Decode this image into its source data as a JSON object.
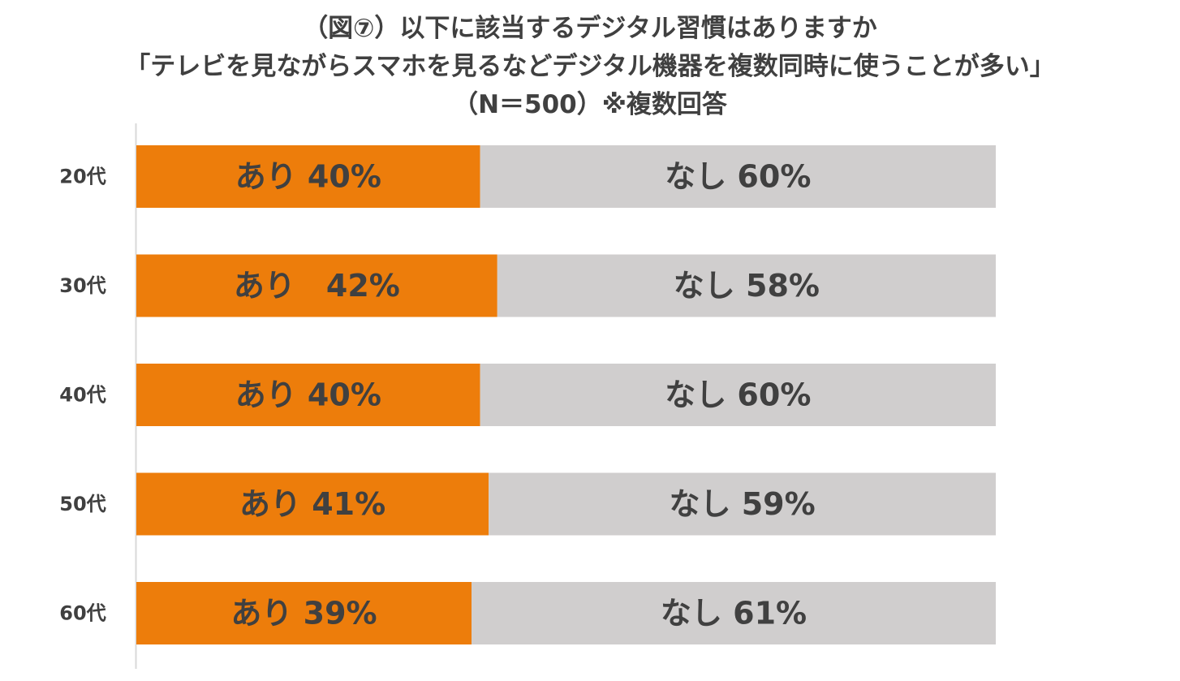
{
  "title_lines": [
    "（図⑦）以下に該当するデジタル習慣はありますか",
    "「テレビを見ながらスマホを見るなどデジタル機器を複数同時に使うことが多い」",
    "（N＝500）※複数回答"
  ],
  "colors": {
    "ari": "#ED7D0B",
    "nashi": "#D0CECE",
    "text": "#404040",
    "axis": "#D9D9D9"
  },
  "chart_data": {
    "type": "bar",
    "orientation": "horizontal",
    "stacked": true,
    "percent": true,
    "categories": [
      "20代",
      "30代",
      "40代",
      "50代",
      "60代"
    ],
    "series": [
      {
        "name": "あり",
        "values": [
          40,
          42,
          40,
          41,
          39
        ],
        "labels": [
          "あり 40%",
          "あり　42%",
          "あり 40%",
          "あり 41%",
          "あり 39%"
        ]
      },
      {
        "name": "なし",
        "values": [
          60,
          58,
          60,
          59,
          61
        ],
        "labels": [
          "なし 60%",
          "なし 58%",
          "なし 60%",
          "なし 59%",
          "なし 61%"
        ]
      }
    ],
    "xlim": [
      0,
      100
    ],
    "grid": false,
    "legend": "none"
  }
}
